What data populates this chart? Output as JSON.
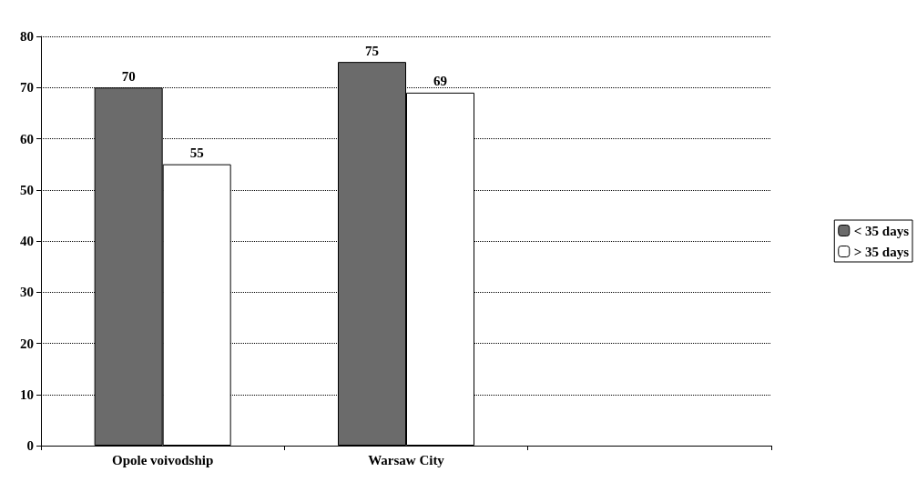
{
  "chart_data": {
    "type": "bar",
    "categories": [
      "Opole voivodship",
      "Warsaw City",
      null
    ],
    "series": [
      {
        "name": "< 35 days",
        "color": "#6b6b6b",
        "values": [
          70,
          75,
          null
        ]
      },
      {
        "name": "> 35 days",
        "color": "#ffffff",
        "values": [
          55,
          69,
          null
        ]
      }
    ],
    "ylim": [
      0,
      80
    ],
    "yticks": [
      0,
      10,
      20,
      30,
      40,
      50,
      60,
      70,
      80
    ],
    "grid": "y",
    "legend": "right",
    "data_labels": true
  }
}
